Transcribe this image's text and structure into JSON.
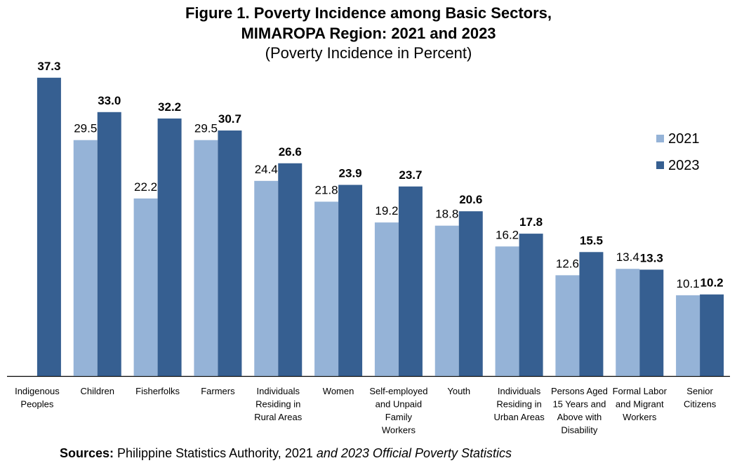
{
  "chart_data": {
    "type": "bar",
    "title": [
      "Figure 1. Poverty Incidence among Basic Sectors,",
      "MIMAROPA Region: 2021 and 2023"
    ],
    "subtitle": "(Poverty Incidence in Percent)",
    "categories": [
      [
        "Indigenous",
        "Peoples"
      ],
      [
        "Children"
      ],
      [
        "Fisherfolks"
      ],
      [
        "Farmers"
      ],
      [
        "Individuals",
        "Residing in",
        "Rural Areas"
      ],
      [
        "Women"
      ],
      [
        "Self-employed",
        "and Unpaid",
        "Family",
        "Workers"
      ],
      [
        "Youth"
      ],
      [
        "Individuals",
        "Residing in",
        "Urban Areas"
      ],
      [
        "Persons Aged",
        "15 Years and",
        "Above with",
        "Disability"
      ],
      [
        "Formal Labor",
        "and Migrant",
        "Workers"
      ],
      [
        "Senior",
        "Citizens"
      ]
    ],
    "series": [
      {
        "name": "2021",
        "color": "#95b3d7",
        "values": [
          null,
          29.5,
          22.2,
          29.5,
          24.4,
          21.8,
          19.2,
          18.8,
          16.2,
          12.6,
          13.4,
          10.1
        ],
        "labels": [
          "",
          "29.5",
          "22.2",
          "29.5",
          "24.4",
          "21.8",
          "19.2",
          "18.8",
          "16.2",
          "12.6",
          "13.4",
          "10.1"
        ]
      },
      {
        "name": "2023",
        "color": "#365f91",
        "values": [
          37.3,
          33.0,
          32.2,
          30.7,
          26.6,
          23.9,
          23.7,
          20.6,
          17.8,
          15.5,
          13.3,
          10.2
        ],
        "labels": [
          "37.3",
          "33.0",
          "32.2",
          "30.7",
          "26.6",
          "23.9",
          "23.7",
          "20.6",
          "17.8",
          "15.5",
          "13.3",
          "10.2"
        ]
      }
    ],
    "ylim": [
      0,
      40
    ],
    "grid": false,
    "legend_position": "right"
  },
  "source": {
    "label": "Sources:",
    "text": " Philippine Statistics Authority, 2021 ",
    "italic": "and 2023 Official Poverty Statistics"
  }
}
